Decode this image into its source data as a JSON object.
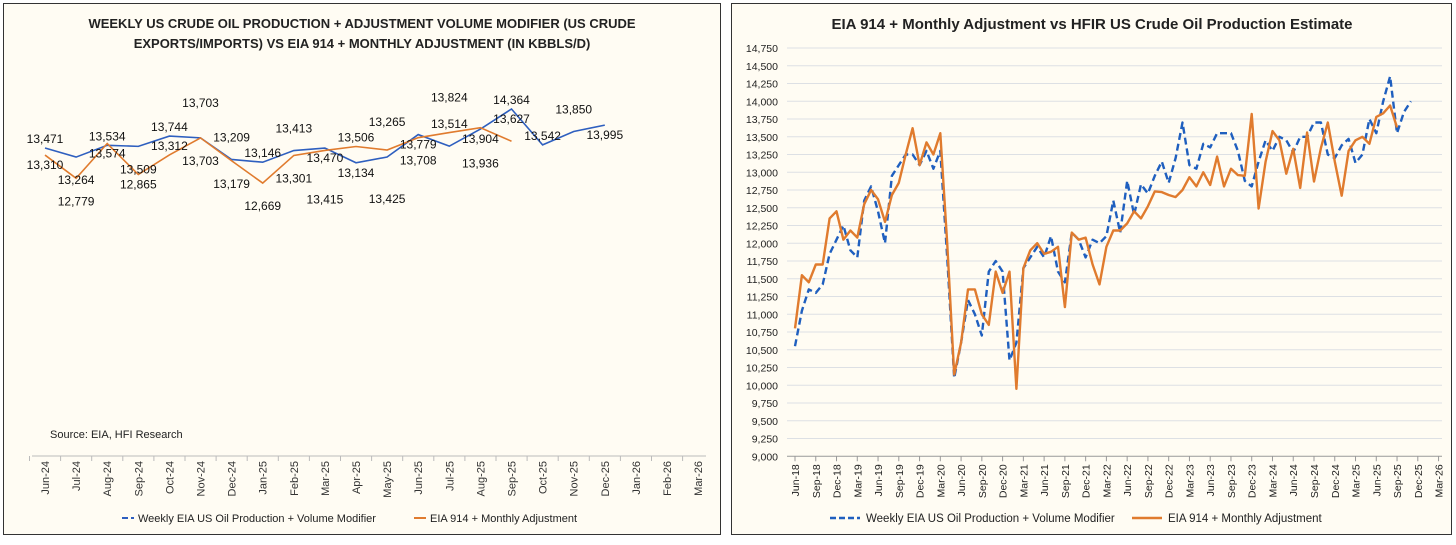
{
  "chart_data": [
    {
      "type": "line",
      "title_lines": [
        "WEEKLY US CRUDE OIL PRODUCTION + ADJUSTMENT VOLUME MODIFIER (US CRUDE",
        "EXPORTS/IMPORTS) VS EIA 914 + MONTHLY ADJUSTMENT (IN KBBLS/D)"
      ],
      "source": "Source: EIA, HFI Research",
      "categories": [
        "Jun-24",
        "Jul-24",
        "Aug-24",
        "Sep-24",
        "Oct-24",
        "Nov-24",
        "Dec-24",
        "Jan-25",
        "Feb-25",
        "Mar-25",
        "Apr-25",
        "May-25",
        "Jun-25",
        "Jul-25",
        "Aug-25",
        "Sep-25",
        "Oct-25",
        "Nov-25",
        "Dec-25",
        "Jan-26",
        "Feb-26",
        "Mar-26"
      ],
      "series": [
        {
          "name": "Weekly EIA US Oil Production + Volume Modifier",
          "color": "#2e5fbf",
          "dash": "long-dash",
          "values": [
            13471,
            13264,
            13534,
            13509,
            13744,
            13703,
            13209,
            13146,
            13413,
            13470,
            13134,
            13265,
            13779,
            13514,
            13904,
            14364,
            13542,
            13850,
            13995,
            null,
            null,
            null
          ]
        },
        {
          "name": "EIA 914 + Monthly Adjustment",
          "color": "#e07b2e",
          "dash": "solid",
          "values": [
            13310,
            12779,
            13574,
            12865,
            13312,
            13703,
            13179,
            12669,
            13301,
            13415,
            13506,
            13425,
            13708,
            13824,
            13936,
            13627,
            null,
            null,
            null,
            null,
            null,
            null
          ]
        }
      ],
      "data_labels": true,
      "legend_position": "bottom"
    },
    {
      "type": "line",
      "title": "EIA 914 + Monthly Adjustment vs HFIR US Crude Oil Production Estimate",
      "ylim": [
        9000,
        14750
      ],
      "yticks": [
        "9,000",
        "9,250",
        "9,500",
        "9,750",
        "10,000",
        "10,250",
        "10,500",
        "10,750",
        "11,000",
        "11,250",
        "11,500",
        "11,750",
        "12,000",
        "12,250",
        "12,500",
        "12,750",
        "13,000",
        "13,250",
        "13,500",
        "13,750",
        "14,000",
        "14,250",
        "14,500",
        "14,750"
      ],
      "xticks": [
        "Jun-18",
        "Sep-18",
        "Dec-18",
        "Mar-19",
        "Jun-19",
        "Sep-19",
        "Dec-19",
        "Mar-20",
        "Jun-20",
        "Sep-20",
        "Dec-20",
        "Mar-21",
        "Jun-21",
        "Sep-21",
        "Dec-21",
        "Mar-22",
        "Jun-22",
        "Sep-22",
        "Dec-22",
        "Mar-23",
        "Jun-23",
        "Sep-23",
        "Dec-23",
        "Mar-24",
        "Jun-24",
        "Sep-24",
        "Dec-24",
        "Mar-25",
        "Jun-25",
        "Sep-25",
        "Dec-25",
        "Mar-26"
      ],
      "x_start": "Jun-18",
      "grid": true,
      "legend_position": "bottom",
      "series": [
        {
          "name": "Weekly EIA US Oil Production + Volume Modifier",
          "color": "#1f5fbf",
          "dash": "dashed",
          "values": [
            10550,
            11050,
            11350,
            11300,
            11420,
            11850,
            12050,
            12250,
            11900,
            11800,
            12600,
            12800,
            12450,
            12000,
            12950,
            13100,
            13250,
            13250,
            13100,
            13300,
            13050,
            13300,
            11800,
            10100,
            10600,
            11200,
            11000,
            10700,
            11600,
            11750,
            11600,
            10350,
            10600,
            11650,
            11800,
            11950,
            11800,
            12100,
            11600,
            11450,
            12150,
            12050,
            11800,
            12050,
            12000,
            12100,
            12600,
            12150,
            12880,
            12400,
            12830,
            12700,
            12950,
            13150,
            12850,
            13200,
            13700,
            13100,
            13050,
            13400,
            13350,
            13550,
            13550,
            13550,
            13300,
            12880,
            12800,
            13150,
            13450,
            13300,
            13500,
            13450,
            13280,
            13500,
            13500,
            13700,
            13700,
            13250,
            13200,
            13380,
            13470,
            13130,
            13250,
            13750,
            13550,
            14000,
            14350,
            13550,
            13850,
            14000
          ]
        },
        {
          "name": "EIA 914 + Monthly Adjustment",
          "color": "#e07b2e",
          "dash": "solid",
          "values": [
            10800,
            11550,
            11450,
            11700,
            11700,
            12350,
            12450,
            12050,
            12180,
            12080,
            12550,
            12750,
            12620,
            12300,
            12680,
            12850,
            13250,
            13620,
            13100,
            13420,
            13250,
            13550,
            12000,
            10150,
            10600,
            11350,
            11350,
            11000,
            10850,
            11600,
            11300,
            11600,
            9950,
            11650,
            11900,
            12000,
            11850,
            11880,
            11950,
            11100,
            12150,
            12050,
            12080,
            11700,
            11420,
            11950,
            12180,
            12180,
            12280,
            12450,
            12350,
            12520,
            12730,
            12720,
            12680,
            12650,
            12750,
            12930,
            12800,
            13000,
            12820,
            13220,
            12800,
            13050,
            12960,
            12950,
            13820,
            12490,
            13150,
            13580,
            13450,
            12980,
            13330,
            12780,
            13560,
            12870,
            13340,
            13700,
            13150,
            12670,
            13300,
            13450,
            13500,
            13400,
            13780,
            13830,
            13940,
            13630
          ]
        }
      ]
    }
  ]
}
